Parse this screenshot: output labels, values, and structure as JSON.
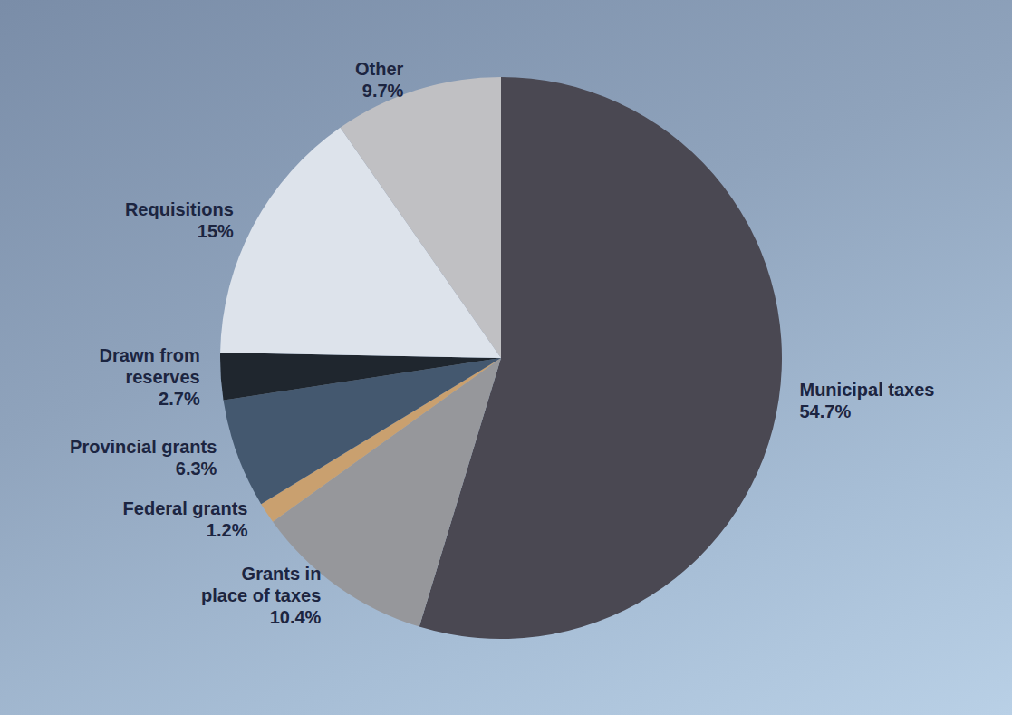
{
  "chart_data": {
    "type": "pie",
    "categories": [
      "Municipal taxes",
      "Grants in place of taxes",
      "Federal grants",
      "Provincial grants",
      "Drawn from reserves",
      "Requisitions",
      "Other"
    ],
    "values": [
      54.7,
      10.4,
      1.2,
      6.3,
      2.7,
      15,
      9.7
    ],
    "value_labels": [
      "54.7%",
      "10.4%",
      "1.2%",
      "6.3%",
      "2.7%",
      "15%",
      "9.7%"
    ],
    "colors": [
      "#4a4852",
      "#96979b",
      "#c9a06f",
      "#44586f",
      "#1f262e",
      "#dde3eb",
      "#c0c0c3"
    ],
    "data_labels": true
  }
}
